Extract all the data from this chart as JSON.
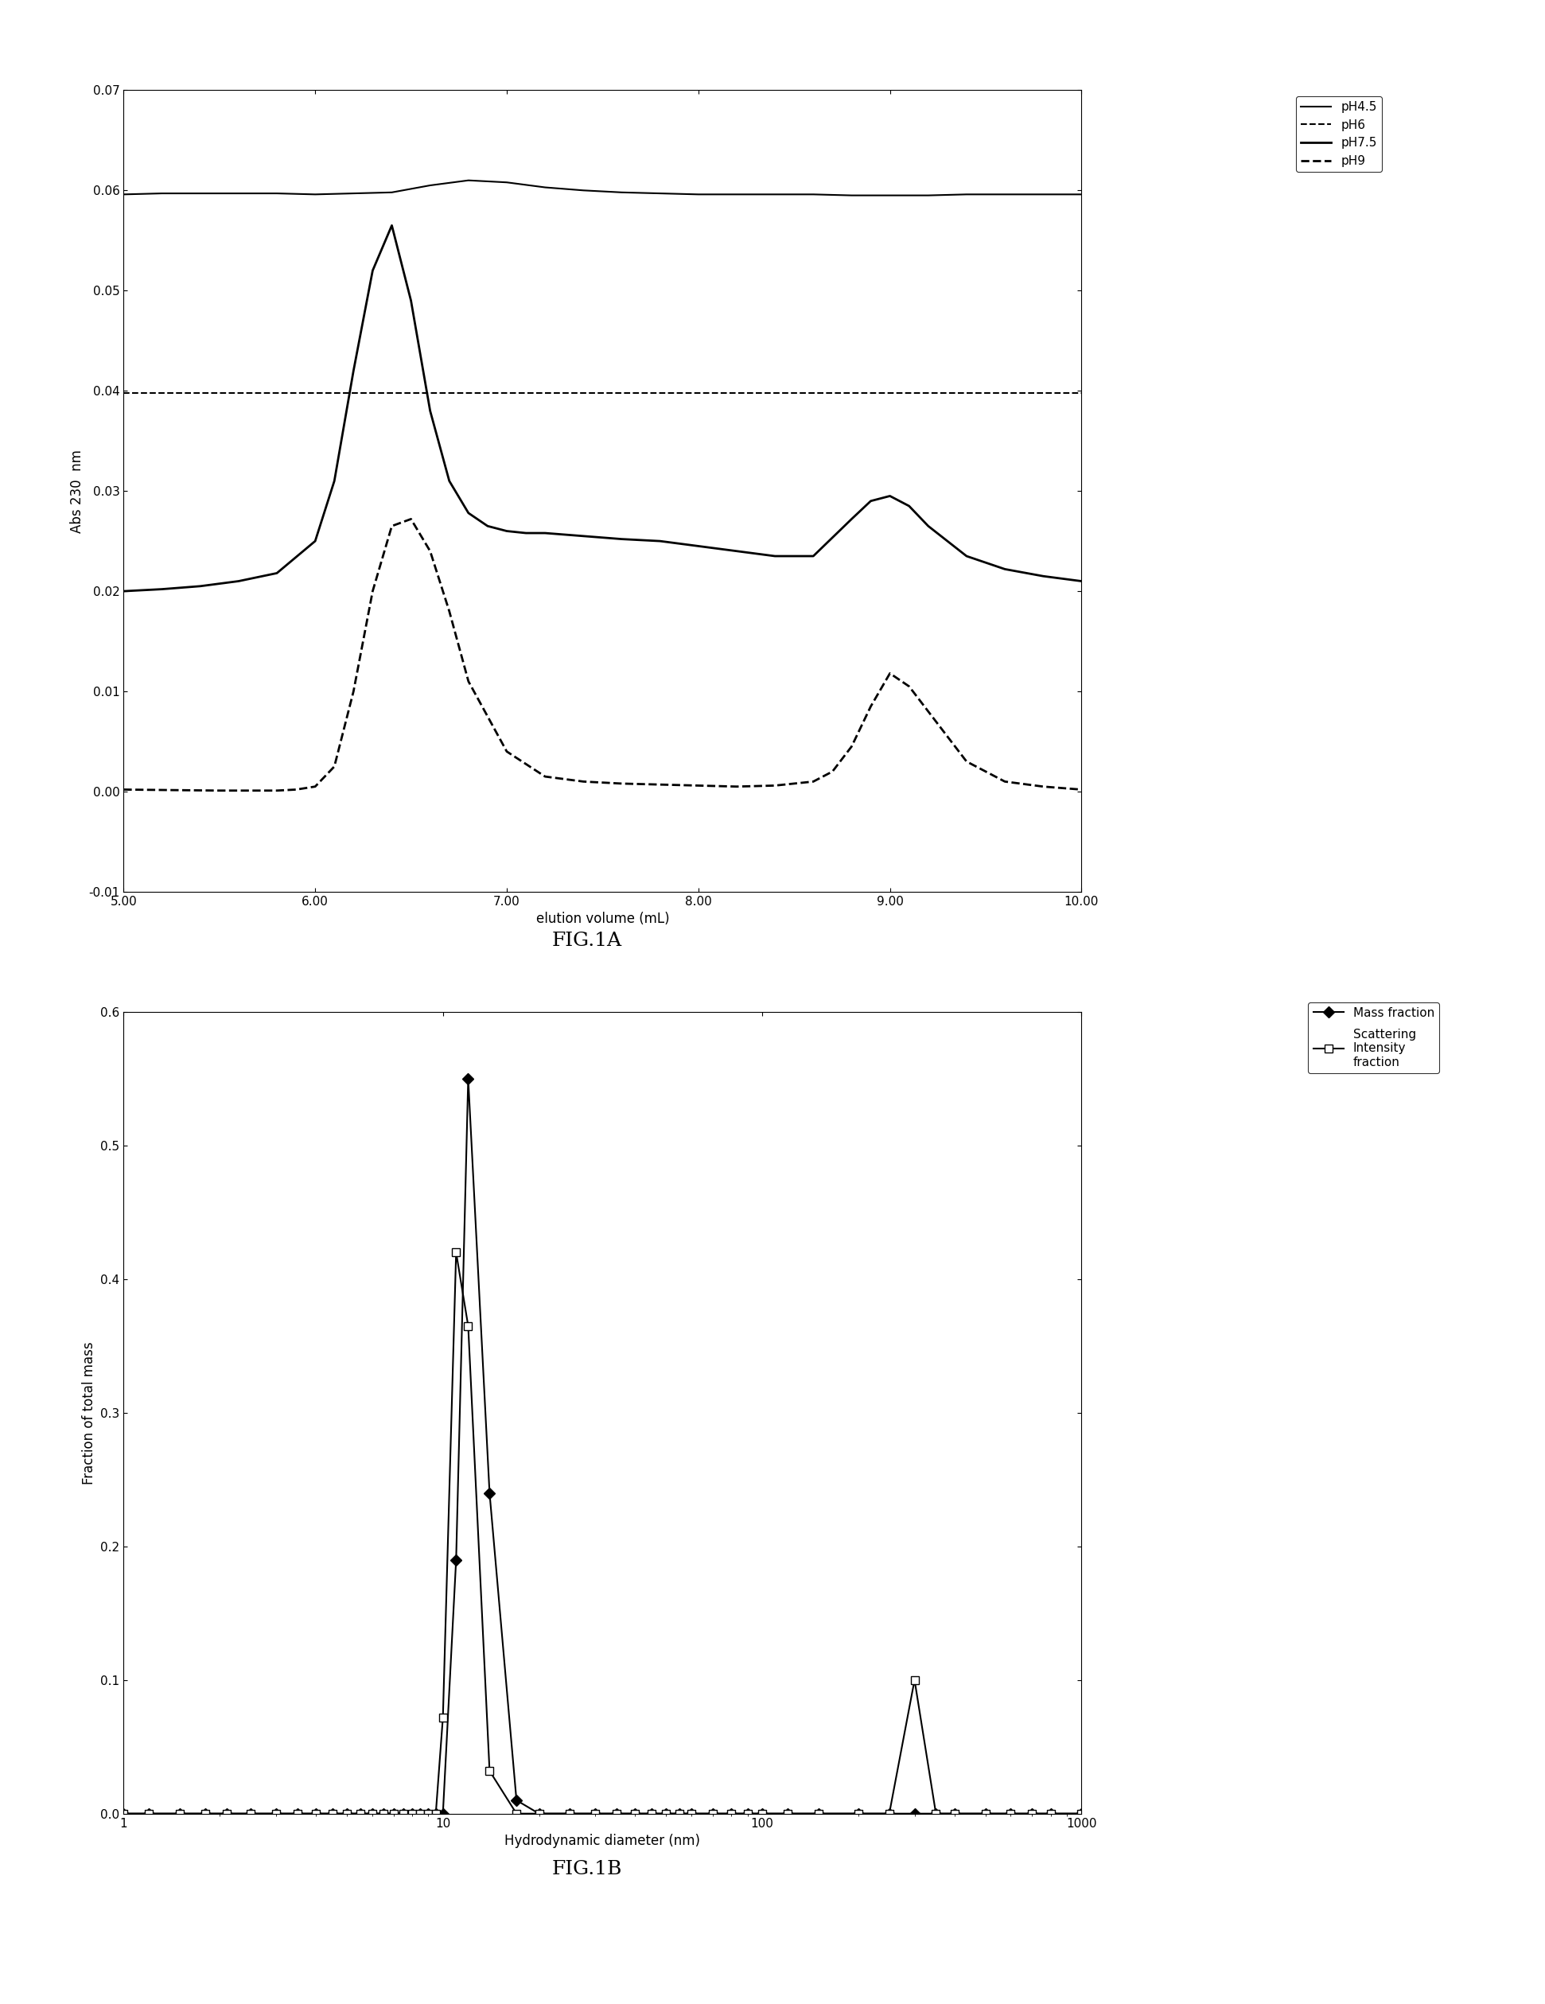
{
  "fig1a": {
    "xlabel": "elution volume (mL)",
    "ylabel": "Abs 230  nm",
    "xlim": [
      5.0,
      10.0
    ],
    "ylim": [
      -0.01,
      0.07
    ],
    "yticks": [
      -0.01,
      0.0,
      0.01,
      0.02,
      0.03,
      0.04,
      0.05,
      0.06,
      0.07
    ],
    "xticks": [
      5.0,
      6.0,
      7.0,
      8.0,
      9.0,
      10.0
    ],
    "ph45": {
      "label": "pH4.5",
      "linestyle": "solid",
      "linewidth": 1.5,
      "color": "#000000",
      "x": [
        5.0,
        5.2,
        5.4,
        5.6,
        5.8,
        6.0,
        6.2,
        6.4,
        6.6,
        6.8,
        7.0,
        7.2,
        7.4,
        7.6,
        7.8,
        8.0,
        8.2,
        8.4,
        8.6,
        8.8,
        9.0,
        9.2,
        9.4,
        9.6,
        9.8,
        10.0
      ],
      "y": [
        0.0596,
        0.0597,
        0.0597,
        0.0597,
        0.0597,
        0.0596,
        0.0597,
        0.0598,
        0.0605,
        0.061,
        0.0608,
        0.0603,
        0.06,
        0.0598,
        0.0597,
        0.0596,
        0.0596,
        0.0596,
        0.0596,
        0.0595,
        0.0595,
        0.0595,
        0.0596,
        0.0596,
        0.0596,
        0.0596
      ]
    },
    "ph6": {
      "label": "pH6",
      "linestyle": "dashed",
      "linewidth": 1.5,
      "color": "#000000",
      "x": [
        5.0,
        5.2,
        5.4,
        5.6,
        5.8,
        6.0,
        6.2,
        6.4,
        6.6,
        6.8,
        7.0,
        7.2,
        7.4,
        7.6,
        7.8,
        8.0,
        8.2,
        8.4,
        8.6,
        8.8,
        9.0,
        9.2,
        9.4,
        9.6,
        9.8,
        10.0
      ],
      "y": [
        0.0398,
        0.0398,
        0.0398,
        0.0398,
        0.0398,
        0.0398,
        0.0398,
        0.0398,
        0.0398,
        0.0398,
        0.0398,
        0.0398,
        0.0398,
        0.0398,
        0.0398,
        0.0398,
        0.0398,
        0.0398,
        0.0398,
        0.0398,
        0.0398,
        0.0398,
        0.0398,
        0.0398,
        0.0398,
        0.0398
      ]
    },
    "ph75": {
      "label": "pH7.5",
      "linestyle": "solid",
      "linewidth": 2.0,
      "color": "#000000",
      "x": [
        5.0,
        5.2,
        5.4,
        5.6,
        5.8,
        6.0,
        6.1,
        6.2,
        6.3,
        6.4,
        6.5,
        6.6,
        6.7,
        6.8,
        6.9,
        7.0,
        7.1,
        7.2,
        7.4,
        7.6,
        7.8,
        8.0,
        8.2,
        8.4,
        8.6,
        8.8,
        8.9,
        9.0,
        9.1,
        9.2,
        9.4,
        9.6,
        9.8,
        10.0
      ],
      "y": [
        0.02,
        0.0202,
        0.0205,
        0.021,
        0.0218,
        0.025,
        0.031,
        0.042,
        0.052,
        0.0565,
        0.049,
        0.038,
        0.031,
        0.0278,
        0.0265,
        0.026,
        0.0258,
        0.0258,
        0.0255,
        0.0252,
        0.025,
        0.0245,
        0.024,
        0.0235,
        0.0235,
        0.0272,
        0.029,
        0.0295,
        0.0285,
        0.0265,
        0.0235,
        0.0222,
        0.0215,
        0.021
      ]
    },
    "ph9": {
      "label": "pH9",
      "linestyle": "dashed",
      "linewidth": 2.0,
      "color": "#000000",
      "x": [
        5.0,
        5.5,
        5.8,
        5.9,
        6.0,
        6.1,
        6.2,
        6.3,
        6.4,
        6.5,
        6.6,
        6.7,
        6.8,
        7.0,
        7.2,
        7.4,
        7.6,
        7.8,
        8.0,
        8.2,
        8.4,
        8.6,
        8.7,
        8.8,
        8.9,
        9.0,
        9.1,
        9.2,
        9.4,
        9.6,
        9.8,
        10.0
      ],
      "y": [
        0.0002,
        0.0001,
        0.0001,
        0.0002,
        0.0005,
        0.0025,
        0.01,
        0.02,
        0.0265,
        0.0272,
        0.024,
        0.018,
        0.011,
        0.004,
        0.0015,
        0.001,
        0.0008,
        0.0007,
        0.0006,
        0.0005,
        0.0006,
        0.001,
        0.002,
        0.0045,
        0.0085,
        0.0118,
        0.0105,
        0.008,
        0.003,
        0.001,
        0.0005,
        0.0002
      ]
    }
  },
  "fig1b": {
    "xlabel": "Hydrodynamic diameter (nm)",
    "ylabel": "Fraction of total mass",
    "xlim": [
      1,
      1000
    ],
    "ylim": [
      0.0,
      0.6
    ],
    "yticks": [
      0.0,
      0.1,
      0.2,
      0.3,
      0.4,
      0.5,
      0.6
    ],
    "mass_fraction": {
      "label": "Mass fraction",
      "marker": "D",
      "markersize": 7,
      "linestyle": "solid",
      "linewidth": 1.5,
      "color": "#000000",
      "x": [
        1.0,
        1.2,
        1.5,
        1.8,
        2.1,
        2.5,
        3.0,
        3.5,
        4.0,
        4.5,
        5.0,
        5.5,
        6.0,
        6.5,
        7.0,
        7.5,
        8.0,
        8.5,
        9.0,
        9.5,
        10.0,
        11.0,
        12.0,
        14.0,
        17.0,
        20.0,
        25.0,
        30.0,
        35.0,
        40.0,
        45.0,
        50.0,
        55.0,
        60.0,
        70.0,
        80.0,
        90.0,
        100.0,
        120.0,
        150.0,
        200.0,
        250.0,
        300.0,
        350.0,
        400.0,
        500.0,
        600.0,
        700.0,
        800.0,
        1000.0
      ],
      "y": [
        0.0,
        0.0,
        0.0,
        0.0,
        0.0,
        0.0,
        0.0,
        0.0,
        0.0,
        0.0,
        0.0,
        0.0,
        0.0,
        0.0,
        0.0,
        0.0,
        0.0,
        0.0,
        0.0,
        0.0,
        0.0,
        0.19,
        0.55,
        0.24,
        0.01,
        0.0,
        0.0,
        0.0,
        0.0,
        0.0,
        0.0,
        0.0,
        0.0,
        0.0,
        0.0,
        0.0,
        0.0,
        0.0,
        0.0,
        0.0,
        0.0,
        0.0,
        0.0,
        0.0,
        0.0,
        0.0,
        0.0,
        0.0,
        0.0,
        0.0
      ]
    },
    "scattering_fraction": {
      "label": "Scattering\nIntensity\nfraction",
      "marker": "s",
      "markersize": 7,
      "linestyle": "solid",
      "linewidth": 1.5,
      "color": "#000000",
      "x": [
        1.0,
        1.2,
        1.5,
        1.8,
        2.1,
        2.5,
        3.0,
        3.5,
        4.0,
        4.5,
        5.0,
        5.5,
        6.0,
        6.5,
        7.0,
        7.5,
        8.0,
        8.5,
        9.0,
        9.5,
        10.0,
        11.0,
        12.0,
        14.0,
        17.0,
        20.0,
        25.0,
        30.0,
        35.0,
        40.0,
        45.0,
        50.0,
        55.0,
        60.0,
        70.0,
        80.0,
        90.0,
        100.0,
        120.0,
        150.0,
        200.0,
        250.0,
        300.0,
        350.0,
        400.0,
        500.0,
        600.0,
        700.0,
        800.0,
        1000.0
      ],
      "y": [
        0.0,
        0.0,
        0.0,
        0.0,
        0.0,
        0.0,
        0.0,
        0.0,
        0.0,
        0.0,
        0.0,
        0.0,
        0.0,
        0.0,
        0.0,
        0.0,
        0.0,
        0.0,
        0.0,
        0.0,
        0.072,
        0.42,
        0.365,
        0.032,
        0.0,
        0.0,
        0.0,
        0.0,
        0.0,
        0.0,
        0.0,
        0.0,
        0.0,
        0.0,
        0.0,
        0.0,
        0.0,
        0.0,
        0.0,
        0.0,
        0.0,
        0.0,
        0.1,
        0.0,
        0.0,
        0.0,
        0.0,
        0.0,
        0.0,
        0.0
      ]
    }
  },
  "fig1a_label": "FIG.1A",
  "fig1b_label": "FIG.1B",
  "background_color": "#ffffff",
  "text_color": "#000000"
}
